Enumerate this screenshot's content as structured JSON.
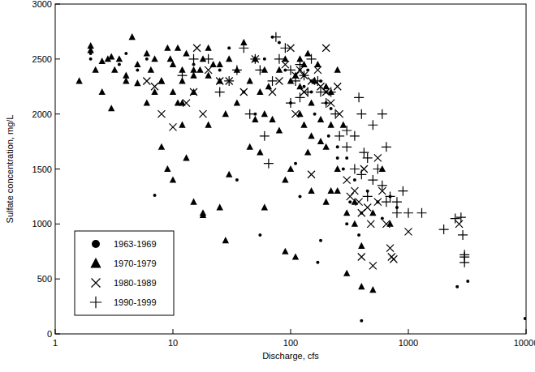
{
  "chart_data": {
    "type": "scatter",
    "x_label": "Discharge, cfs",
    "y_label": "Sulfate concentration, mg/L",
    "log": "x",
    "xlim": [
      1,
      10000
    ],
    "xticks": [
      1,
      10,
      100,
      1000,
      10000
    ],
    "ylim": [
      0,
      3000
    ],
    "yticks": [
      0,
      500,
      1000,
      1500,
      2000,
      2500,
      3000
    ],
    "grid": false,
    "legend": "lower left",
    "series": [
      {
        "name": "1963-1969",
        "color": "#000000",
        "marker": "circle",
        "x": [
          2,
          2,
          3.5,
          4,
          5,
          6,
          7,
          8,
          10,
          15,
          20,
          25,
          30,
          35,
          40,
          50,
          55,
          60,
          70,
          80,
          90,
          100,
          100,
          110,
          120,
          120,
          130,
          150,
          150,
          160,
          170,
          180,
          200,
          200,
          210,
          220,
          250,
          250,
          280,
          300,
          300,
          320,
          350,
          380,
          400,
          400,
          450,
          500,
          550,
          600,
          700,
          800,
          2600,
          3200,
          9800,
          180,
          130,
          140,
          250
        ],
        "values": [
          2500,
          2550,
          2450,
          2550,
          2400,
          2500,
          1260,
          2300,
          2450,
          2450,
          2350,
          2400,
          2600,
          1400,
          2200,
          2000,
          900,
          2500,
          2700,
          2650,
          2400,
          2300,
          2100,
          1550,
          1250,
          2400,
          2350,
          2200,
          2300,
          2000,
          650,
          850,
          2200,
          2100,
          1800,
          2050,
          1700,
          1300,
          1500,
          1600,
          1000,
          1200,
          1400,
          900,
          1100,
          120,
          1300,
          1100,
          1200,
          1050,
          1250,
          1150,
          430,
          480,
          140,
          2300,
          2250,
          2400,
          1600
        ]
      },
      {
        "name": "1970-1979",
        "color": "#000000",
        "marker": "triangle",
        "x": [
          1.6,
          2,
          2,
          2.2,
          2.5,
          2.8,
          3,
          3.2,
          3.5,
          4.5,
          4,
          5,
          5,
          6,
          6.5,
          7,
          8,
          9,
          9.5,
          10,
          11,
          12,
          13,
          15,
          15,
          18,
          20,
          22,
          25,
          28,
          30,
          35,
          40,
          45,
          50,
          55,
          60,
          8,
          9,
          10,
          12,
          13,
          15,
          18,
          18,
          20,
          25,
          28,
          30,
          35,
          45,
          55,
          60,
          70,
          80,
          90,
          90,
          100,
          110,
          120,
          120,
          130,
          150,
          150,
          180,
          200,
          200,
          220,
          250,
          250,
          300,
          300,
          350,
          400,
          400,
          500,
          500,
          600,
          150,
          180,
          140,
          250,
          100,
          110,
          130,
          160,
          8,
          4,
          3,
          2.5,
          7,
          6,
          10,
          12,
          11,
          12,
          15,
          17,
          25,
          20,
          60,
          50,
          65,
          220,
          200,
          170,
          120,
          90,
          80,
          140,
          700,
          350,
          280,
          220
        ],
        "values": [
          2300,
          2620,
          2580,
          2400,
          2480,
          2500,
          2520,
          2400,
          2500,
          2700,
          2350,
          2450,
          2280,
          2550,
          2400,
          2500,
          2300,
          2600,
          2500,
          2450,
          2600,
          2400,
          2550,
          2200,
          2400,
          2500,
          2600,
          2450,
          2300,
          2000,
          2500,
          2400,
          2650,
          2300,
          2500,
          2200,
          2400,
          1700,
          1500,
          1400,
          2100,
          1600,
          1200,
          1100,
          1080,
          1900,
          1150,
          850,
          1450,
          2100,
          1700,
          1650,
          1150,
          1950,
          1850,
          1400,
          750,
          1500,
          700,
          2500,
          2000,
          1900,
          2100,
          1800,
          1750,
          1700,
          1200,
          1300,
          1500,
          1300,
          1100,
          550,
          1000,
          800,
          430,
          400,
          1100,
          1500,
          1300,
          1950,
          1650,
          2400,
          2300,
          2350,
          2450,
          2300,
          2300,
          2300,
          2050,
          2200,
          2200,
          2100,
          2200,
          2300,
          2100,
          1900,
          2350,
          2400,
          2450,
          2350,
          2000,
          1950,
          2250,
          2200,
          2250,
          2450,
          2250,
          2500,
          2400,
          2550,
          1000,
          1200,
          1900,
          1900
        ]
      },
      {
        "name": "1980-1989",
        "color": "#000000",
        "marker": "x",
        "x": [
          6,
          8,
          10,
          13,
          15,
          16,
          18,
          20,
          25,
          30,
          40,
          50,
          70,
          80,
          90,
          100,
          110,
          120,
          130,
          150,
          180,
          200,
          220,
          250,
          300,
          320,
          350,
          380,
          400,
          420,
          450,
          480,
          500,
          550,
          600,
          650,
          700,
          720,
          750,
          1000,
          150,
          260,
          2700,
          200,
          170,
          130,
          110,
          7,
          400,
          550
        ],
        "values": [
          2300,
          2000,
          1880,
          2100,
          2200,
          2600,
          2000,
          2400,
          2300,
          2300,
          2200,
          2500,
          2200,
          2300,
          2450,
          2600,
          2350,
          2400,
          2200,
          2300,
          2250,
          2200,
          2100,
          2250,
          1400,
          1250,
          1300,
          1200,
          1100,
          1500,
          1150,
          1000,
          620,
          1200,
          1300,
          1000,
          780,
          700,
          680,
          930,
          1450,
          2000,
          1000,
          2600,
          2400,
          2350,
          2000,
          2250,
          700,
          1600
        ]
      },
      {
        "name": "1990-1999",
        "color": "#000000",
        "marker": "plus",
        "x": [
          12,
          15,
          20,
          25,
          30,
          35,
          40,
          45,
          50,
          55,
          60,
          65,
          70,
          75,
          80,
          90,
          100,
          110,
          120,
          130,
          140,
          150,
          170,
          180,
          200,
          220,
          240,
          260,
          300,
          350,
          380,
          400,
          420,
          450,
          500,
          550,
          600,
          650,
          700,
          800,
          900,
          1000,
          1300,
          2000,
          2500,
          2900,
          2800,
          3000,
          3000,
          3000,
          500,
          600,
          650,
          350,
          300,
          100,
          120,
          400,
          450,
          800
        ],
        "values": [
          2350,
          2500,
          2500,
          2200,
          2300,
          2400,
          2600,
          2000,
          2500,
          2400,
          1800,
          1550,
          2300,
          2700,
          2500,
          2600,
          2400,
          2300,
          2450,
          2350,
          2200,
          2500,
          2300,
          2200,
          2100,
          2200,
          2000,
          1800,
          1850,
          1800,
          2150,
          2000,
          1650,
          1600,
          1400,
          1500,
          1350,
          1200,
          1250,
          1200,
          1300,
          1100,
          1100,
          950,
          1050,
          900,
          1060,
          700,
          650,
          720,
          1900,
          2000,
          1700,
          1500,
          1700,
          2100,
          2150,
          1450,
          1250,
          1100
        ]
      }
    ]
  }
}
